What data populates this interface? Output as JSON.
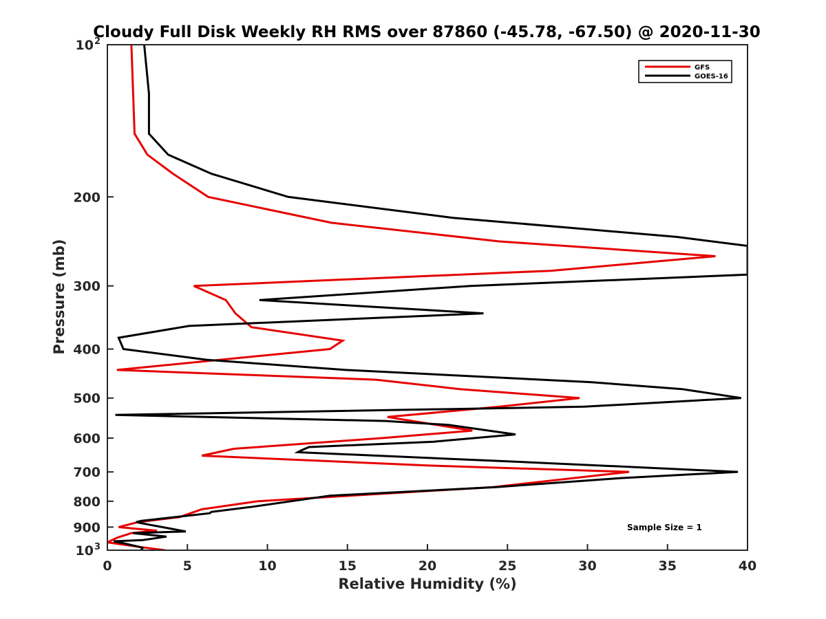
{
  "chart_data": {
    "type": "line",
    "title": "Cloudy Full Disk Weekly RH RMS over 87860 (-45.78, -67.50) @ 2020-11-30",
    "xlabel": "Relative Humidity (%)",
    "ylabel": "Pressure (mb)",
    "xlim": [
      0,
      40
    ],
    "ylim": [
      100,
      1000
    ],
    "y_scale": "log",
    "y_reversed": true,
    "x_ticks": [
      "0",
      "5",
      "10",
      "15",
      "20",
      "25",
      "30",
      "35",
      "40"
    ],
    "y_ticks": [
      {
        "value": 100,
        "label": "10",
        "sup": "2"
      },
      {
        "value": 200,
        "label": "200"
      },
      {
        "value": 300,
        "label": "300"
      },
      {
        "value": 400,
        "label": "400"
      },
      {
        "value": 500,
        "label": "500"
      },
      {
        "value": 600,
        "label": "600"
      },
      {
        "value": 700,
        "label": "700"
      },
      {
        "value": 800,
        "label": "800"
      },
      {
        "value": 900,
        "label": "900"
      },
      {
        "value": 1000,
        "label": "10",
        "sup": "3"
      }
    ],
    "grid": false,
    "legend_position": "top-right",
    "series": [
      {
        "name": "GFS",
        "color": "#e60000",
        "points": [
          [
            1.5,
            100
          ],
          [
            1.7,
            150
          ],
          [
            2.5,
            165
          ],
          [
            4.1,
            180
          ],
          [
            6.3,
            200
          ],
          [
            14.0,
            225
          ],
          [
            24.5,
            245
          ],
          [
            38.0,
            262
          ],
          [
            27.7,
            280
          ],
          [
            5.4,
            300
          ],
          [
            7.4,
            320
          ],
          [
            8.0,
            340
          ],
          [
            9.0,
            362
          ],
          [
            14.7,
            385
          ],
          [
            13.9,
            400
          ],
          [
            0.6,
            440
          ],
          [
            16.8,
            460
          ],
          [
            22.0,
            480
          ],
          [
            29.5,
            500
          ],
          [
            24.5,
            520
          ],
          [
            17.5,
            545
          ],
          [
            22.8,
            580
          ],
          [
            17.2,
            600
          ],
          [
            7.9,
            630
          ],
          [
            5.9,
            650
          ],
          [
            20.1,
            680
          ],
          [
            32.6,
            700
          ],
          [
            24.1,
            750
          ],
          [
            9.4,
            800
          ],
          [
            5.9,
            830
          ],
          [
            4.5,
            860
          ],
          [
            4.2,
            862
          ],
          [
            1.9,
            880
          ],
          [
            0.7,
            900
          ],
          [
            3.1,
            915
          ],
          [
            1.5,
            925
          ],
          [
            0.6,
            945
          ],
          [
            0.0,
            965
          ],
          [
            2.0,
            985
          ],
          [
            3.6,
            1000
          ]
        ]
      },
      {
        "name": "GOES-16",
        "color": "#000000",
        "points": [
          [
            2.3,
            100
          ],
          [
            2.6,
            125
          ],
          [
            2.6,
            150
          ],
          [
            3.8,
            165
          ],
          [
            6.5,
            180
          ],
          [
            11.3,
            200
          ],
          [
            21.6,
            220
          ],
          [
            35.6,
            240
          ],
          [
            40.0,
            250
          ],
          [
            40.0,
            285
          ],
          [
            22.7,
            300
          ],
          [
            9.5,
            320
          ],
          [
            23.5,
            340
          ],
          [
            5.1,
            360
          ],
          [
            0.7,
            380
          ],
          [
            1.0,
            400
          ],
          [
            6.2,
            420
          ],
          [
            14.9,
            440
          ],
          [
            30.2,
            465
          ],
          [
            35.9,
            480
          ],
          [
            39.6,
            500
          ],
          [
            29.8,
            520
          ],
          [
            0.5,
            540
          ],
          [
            17.4,
            555
          ],
          [
            21.3,
            565
          ],
          [
            25.5,
            590
          ],
          [
            20.4,
            610
          ],
          [
            12.6,
            625
          ],
          [
            12.1,
            635
          ],
          [
            11.9,
            640
          ],
          [
            26.4,
            670
          ],
          [
            39.4,
            700
          ],
          [
            32.1,
            720
          ],
          [
            24.3,
            750
          ],
          [
            13.9,
            780
          ],
          [
            9.1,
            820
          ],
          [
            6.5,
            840
          ],
          [
            6.4,
            845
          ],
          [
            2.1,
            875
          ],
          [
            1.8,
            880
          ],
          [
            2.6,
            890
          ],
          [
            4.9,
            918
          ],
          [
            1.6,
            925
          ],
          [
            3.7,
            940
          ],
          [
            2.2,
            955
          ],
          [
            0.4,
            960
          ],
          [
            1.1,
            970
          ],
          [
            2.0,
            985
          ],
          [
            2.2,
            990
          ],
          [
            2.1,
            1000
          ]
        ]
      }
    ],
    "annotation": "Sample Size = 1"
  }
}
